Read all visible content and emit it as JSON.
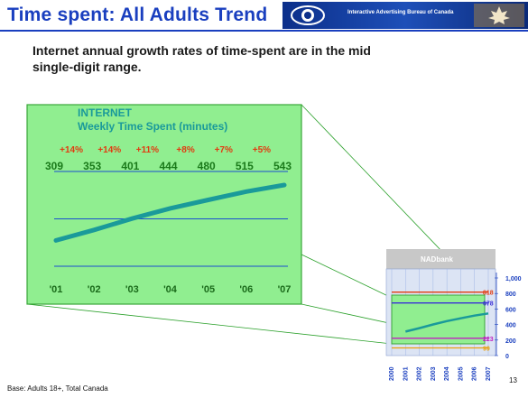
{
  "header": {
    "title": "Time spent: All Adults Trend",
    "banner_org": "Interactive Advertising Bureau of Canada"
  },
  "subtitle": "Internet annual growth rates of time-spent are in the mid single-digit range.",
  "footnote": "Base: Adults 18+, Total Canada",
  "page_number": "13",
  "colors": {
    "title": "#1a3fbf",
    "panel_green": "#90ee90",
    "line_teal": "#1a9a9a",
    "growth_red": "#e23a10",
    "value_green": "#1a8a1a"
  },
  "chart_data": [
    {
      "type": "line",
      "title": "INTERNET",
      "subtitle": "Weekly Time Spent (minutes)",
      "categories": [
        "'01",
        "'02",
        "'03",
        "'04",
        "'05",
        "'06",
        "'07"
      ],
      "values": [
        309,
        353,
        401,
        444,
        480,
        515,
        543
      ],
      "growth_labels": [
        "+14%",
        "+14%",
        "+11%",
        "+8%",
        "+7%",
        "+5%"
      ],
      "ylim": [
        200,
        600
      ],
      "grid": true
    },
    {
      "type": "line",
      "title": "NADbank",
      "categories": [
        "2000",
        "2001",
        "2002",
        "2003",
        "2004",
        "2005",
        "2006",
        "2007"
      ],
      "ylim": [
        0,
        1000
      ],
      "yticks": [
        "0",
        "200",
        "400",
        "600",
        "800",
        "1,000"
      ],
      "series": [
        {
          "label": "818",
          "values": [
            818,
            818,
            818,
            818,
            818,
            818,
            818,
            818
          ],
          "color": "#e23a10"
        },
        {
          "label": "678",
          "values": [
            678,
            678,
            678,
            678,
            678,
            678,
            678,
            678
          ],
          "color": "#3a2fd8"
        },
        {
          "label": "223",
          "values": [
            223,
            223,
            223,
            223,
            223,
            223,
            223,
            223
          ],
          "color": "#c020c0"
        },
        {
          "label": "99",
          "values": [
            99,
            99,
            99,
            99,
            99,
            99,
            99,
            99
          ],
          "color": "#e8a010"
        },
        {
          "label": "",
          "values": [
            null,
            309,
            353,
            401,
            444,
            480,
            515,
            543
          ],
          "color": "#1a9a9a"
        }
      ]
    }
  ]
}
